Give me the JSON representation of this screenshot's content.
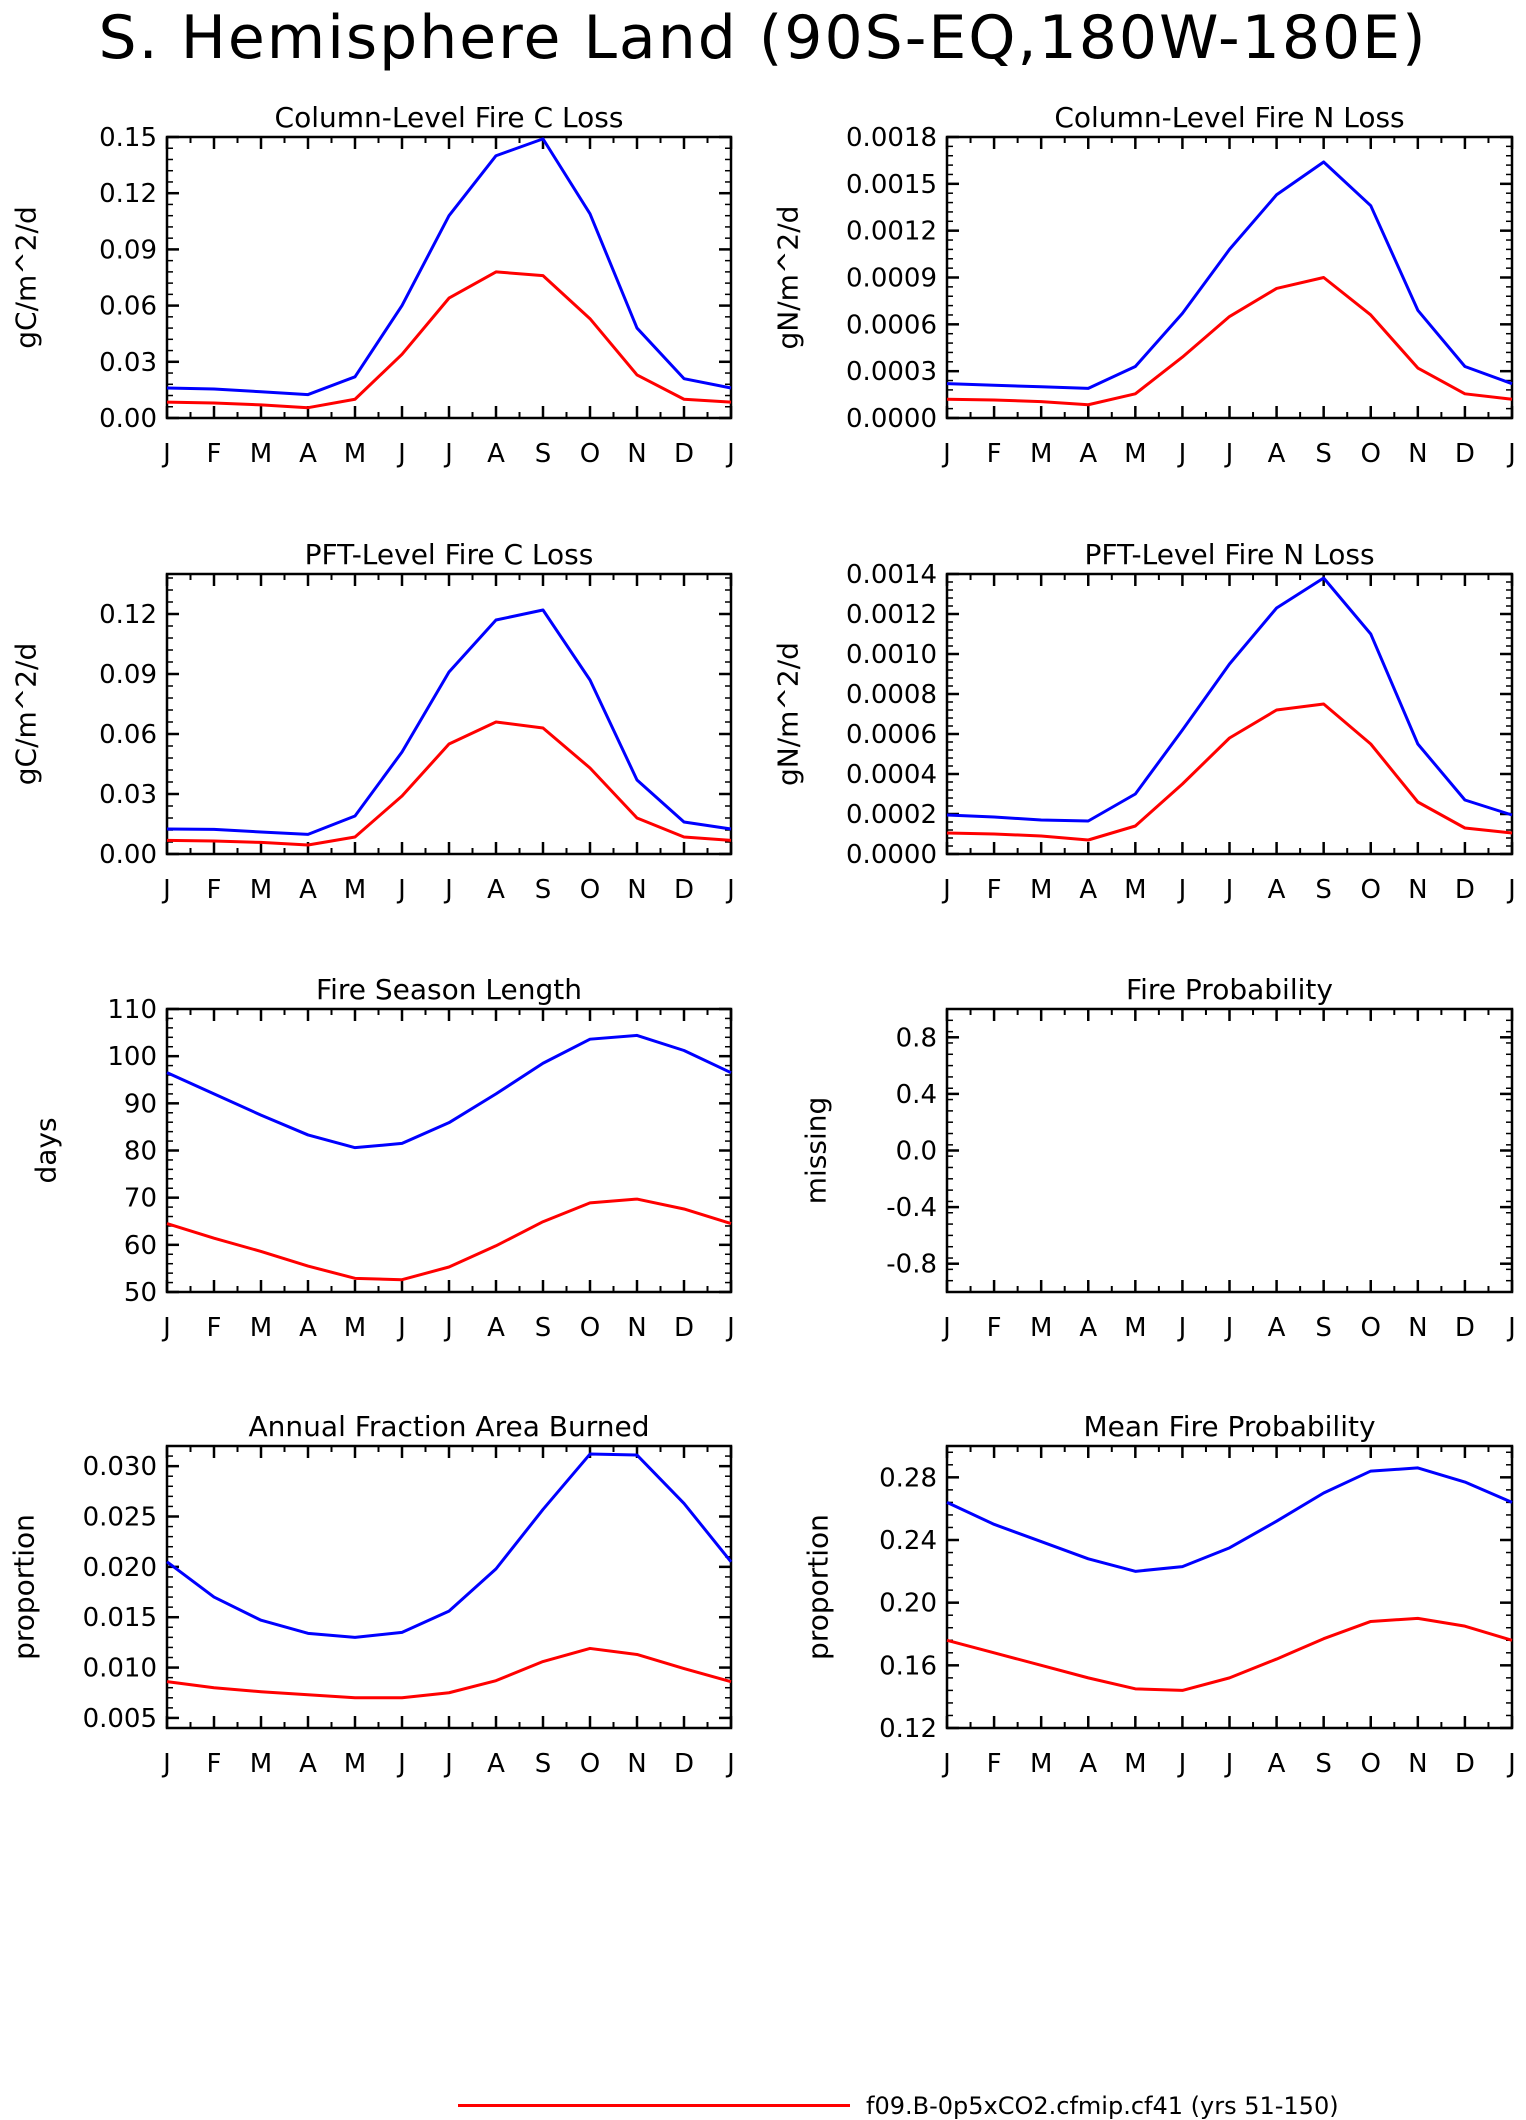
{
  "title": "S. Hemisphere Land (90S-EQ,180W-180E)",
  "legend": {
    "label": "f09.B-0p5xCO2.cfmip.cf41 (yrs 51-150)",
    "color": "#ff0000"
  },
  "colors": {
    "series_1": "#0000ff",
    "series_2": "#ff0000"
  },
  "chart_data": [
    {
      "type": "line",
      "title": "Column-Level Fire C Loss",
      "xlabel": "",
      "ylabel": "gC/m^2/d",
      "categories": [
        "J",
        "F",
        "M",
        "A",
        "M",
        "J",
        "J",
        "A",
        "S",
        "O",
        "N",
        "D",
        "J"
      ],
      "ylim": [
        0,
        0.15
      ],
      "yticks": [
        0.0,
        0.03,
        0.06,
        0.09,
        0.12,
        0.15
      ],
      "ytick_labels": [
        "0.00",
        "0.03",
        "0.06",
        "0.09",
        "0.12",
        "0.15"
      ],
      "series": [
        {
          "color": "#0000ff",
          "values": [
            0.016,
            0.0155,
            0.014,
            0.0125,
            0.022,
            0.06,
            0.108,
            0.14,
            0.149,
            0.109,
            0.048,
            0.021,
            0.016
          ]
        },
        {
          "color": "#ff0000",
          "values": [
            0.0085,
            0.008,
            0.007,
            0.0055,
            0.01,
            0.034,
            0.064,
            0.078,
            0.076,
            0.053,
            0.023,
            0.01,
            0.0085
          ]
        }
      ]
    },
    {
      "type": "line",
      "title": "Column-Level Fire N Loss",
      "xlabel": "",
      "ylabel": "gN/m^2/d",
      "categories": [
        "J",
        "F",
        "M",
        "A",
        "M",
        "J",
        "J",
        "A",
        "S",
        "O",
        "N",
        "D",
        "J"
      ],
      "ylim": [
        0,
        0.0018
      ],
      "yticks": [
        0,
        0.0003,
        0.0006,
        0.0009,
        0.0012,
        0.0015,
        0.0018
      ],
      "ytick_labels": [
        "0.0000",
        "0.0003",
        "0.0006",
        "0.0009",
        "0.0012",
        "0.0015",
        "0.0018"
      ],
      "series": [
        {
          "color": "#0000ff",
          "values": [
            0.00022,
            0.00021,
            0.0002,
            0.00019,
            0.00033,
            0.00067,
            0.00108,
            0.00143,
            0.00164,
            0.00136,
            0.00069,
            0.00033,
            0.00022
          ]
        },
        {
          "color": "#ff0000",
          "values": [
            0.00012,
            0.000115,
            0.000105,
            8.5e-05,
            0.000155,
            0.00039,
            0.00065,
            0.00083,
            0.0009,
            0.00066,
            0.00032,
            0.000155,
            0.00012
          ]
        }
      ]
    },
    {
      "type": "line",
      "title": "PFT-Level Fire C Loss",
      "xlabel": "",
      "ylabel": "gC/m^2/d",
      "categories": [
        "J",
        "F",
        "M",
        "A",
        "M",
        "J",
        "J",
        "A",
        "S",
        "O",
        "N",
        "D",
        "J"
      ],
      "ylim": [
        0,
        0.14
      ],
      "yticks": [
        0.0,
        0.03,
        0.06,
        0.09,
        0.12
      ],
      "ytick_labels": [
        "0.00",
        "0.03",
        "0.06",
        "0.09",
        "0.12"
      ],
      "series": [
        {
          "color": "#0000ff",
          "values": [
            0.0125,
            0.0123,
            0.011,
            0.0098,
            0.019,
            0.051,
            0.091,
            0.117,
            0.122,
            0.087,
            0.037,
            0.016,
            0.0125
          ]
        },
        {
          "color": "#ff0000",
          "values": [
            0.0068,
            0.0065,
            0.0058,
            0.0045,
            0.0085,
            0.029,
            0.055,
            0.066,
            0.063,
            0.043,
            0.018,
            0.0085,
            0.0068
          ]
        }
      ]
    },
    {
      "type": "line",
      "title": "PFT-Level Fire N Loss",
      "xlabel": "",
      "ylabel": "gN/m^2/d",
      "categories": [
        "J",
        "F",
        "M",
        "A",
        "M",
        "J",
        "J",
        "A",
        "S",
        "O",
        "N",
        "D",
        "J"
      ],
      "ylim": [
        0,
        0.0014
      ],
      "yticks": [
        0,
        0.0002,
        0.0004,
        0.0006,
        0.0008,
        0.001,
        0.0012,
        0.0014
      ],
      "ytick_labels": [
        "0.0000",
        "0.0002",
        "0.0004",
        "0.0006",
        "0.0008",
        "0.0010",
        "0.0012",
        "0.0014"
      ],
      "series": [
        {
          "color": "#0000ff",
          "values": [
            0.000195,
            0.000185,
            0.00017,
            0.000165,
            0.0003,
            0.00062,
            0.00095,
            0.00123,
            0.00138,
            0.0011,
            0.00055,
            0.00027,
            0.000195
          ]
        },
        {
          "color": "#ff0000",
          "values": [
            0.000105,
            0.0001,
            9e-05,
            7e-05,
            0.00014,
            0.00035,
            0.00058,
            0.00072,
            0.00075,
            0.00055,
            0.00026,
            0.00013,
            0.000105
          ]
        }
      ]
    },
    {
      "type": "line",
      "title": "Fire Season Length",
      "xlabel": "",
      "ylabel": "days",
      "categories": [
        "J",
        "F",
        "M",
        "A",
        "M",
        "J",
        "J",
        "A",
        "S",
        "O",
        "N",
        "D",
        "J"
      ],
      "ylim": [
        50,
        110
      ],
      "yticks": [
        50,
        60,
        70,
        80,
        90,
        100,
        110
      ],
      "ytick_labels": [
        "50",
        "60",
        "70",
        "80",
        "90",
        "100",
        "110"
      ],
      "series": [
        {
          "color": "#0000ff",
          "values": [
            96.5,
            92,
            87.5,
            83.3,
            80.6,
            81.5,
            85.9,
            92,
            98.5,
            103.6,
            104.4,
            101.2,
            96.5
          ]
        },
        {
          "color": "#ff0000",
          "values": [
            64.5,
            61.4,
            58.6,
            55.5,
            52.9,
            52.6,
            55.3,
            59.8,
            64.9,
            68.9,
            69.7,
            67.6,
            64.5
          ]
        }
      ]
    },
    {
      "type": "line",
      "title": "Fire Probability",
      "xlabel": "",
      "ylabel": "missing",
      "categories": [
        "J",
        "F",
        "M",
        "A",
        "M",
        "J",
        "J",
        "A",
        "S",
        "O",
        "N",
        "D",
        "J"
      ],
      "ylim": [
        -1,
        1
      ],
      "yticks": [
        -0.8,
        -0.4,
        0.0,
        0.4,
        0.8
      ],
      "ytick_labels": [
        "-0.8",
        "-0.4",
        "0.0",
        "0.4",
        "0.8"
      ],
      "series": []
    },
    {
      "type": "line",
      "title": "Annual Fraction Area Burned",
      "xlabel": "",
      "ylabel": "proportion",
      "categories": [
        "J",
        "F",
        "M",
        "A",
        "M",
        "J",
        "J",
        "A",
        "S",
        "O",
        "N",
        "D",
        "J"
      ],
      "ylim": [
        0.004,
        0.032
      ],
      "yticks": [
        0.005,
        0.01,
        0.015,
        0.02,
        0.025,
        0.03
      ],
      "ytick_labels": [
        "0.005",
        "0.010",
        "0.015",
        "0.020",
        "0.025",
        "0.030"
      ],
      "series": [
        {
          "color": "#0000ff",
          "values": [
            0.0205,
            0.017,
            0.0147,
            0.0134,
            0.013,
            0.0135,
            0.0156,
            0.0198,
            0.0257,
            0.0312,
            0.0311,
            0.0263,
            0.0205
          ]
        },
        {
          "color": "#ff0000",
          "values": [
            0.0086,
            0.008,
            0.0076,
            0.0073,
            0.007,
            0.007,
            0.0075,
            0.0087,
            0.0106,
            0.0119,
            0.0113,
            0.0099,
            0.0086
          ]
        }
      ]
    },
    {
      "type": "line",
      "title": "Mean Fire Probability",
      "xlabel": "",
      "ylabel": "proportion",
      "categories": [
        "J",
        "F",
        "M",
        "A",
        "M",
        "J",
        "J",
        "A",
        "S",
        "O",
        "N",
        "D",
        "J"
      ],
      "ylim": [
        0.12,
        0.3
      ],
      "yticks": [
        0.12,
        0.16,
        0.2,
        0.24,
        0.28
      ],
      "ytick_labels": [
        "0.12",
        "0.16",
        "0.20",
        "0.24",
        "0.28"
      ],
      "series": [
        {
          "color": "#0000ff",
          "values": [
            0.264,
            0.25,
            0.239,
            0.228,
            0.22,
            0.223,
            0.235,
            0.252,
            0.27,
            0.284,
            0.286,
            0.277,
            0.264
          ]
        },
        {
          "color": "#ff0000",
          "values": [
            0.176,
            0.168,
            0.16,
            0.152,
            0.145,
            0.144,
            0.152,
            0.164,
            0.177,
            0.188,
            0.19,
            0.185,
            0.176
          ]
        }
      ]
    }
  ]
}
